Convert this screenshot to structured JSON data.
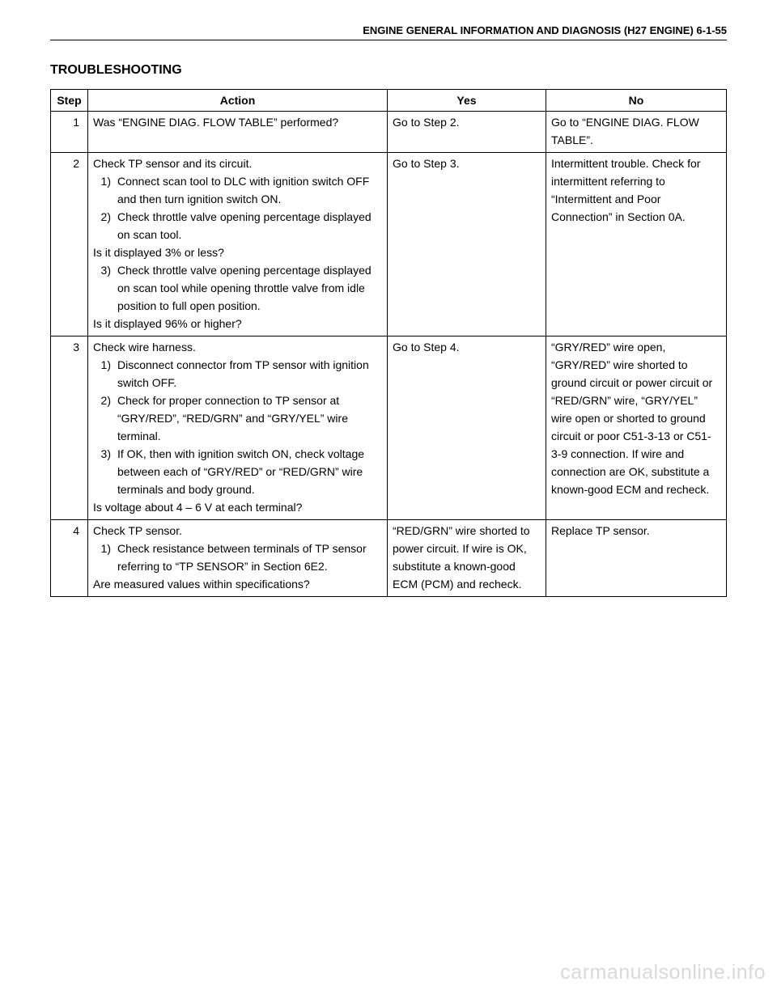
{
  "header": "ENGINE GENERAL INFORMATION AND DIAGNOSIS (H27 ENGINE) 6-1-55",
  "title": "TROUBLESHOOTING",
  "columns": {
    "step": "Step",
    "action": "Action",
    "yes": "Yes",
    "no": "No"
  },
  "rows": [
    {
      "step": "1",
      "action_intro": "Was “ENGINE DIAG. FLOW TABLE” performed?",
      "items": [],
      "action_outro": "",
      "yes": "Go to Step 2.",
      "no": "Go to “ENGINE DIAG. FLOW TABLE”."
    },
    {
      "step": "2",
      "action_intro": "Check TP sensor and its circuit.",
      "items": [
        {
          "n": "1)",
          "t": "Connect scan tool to DLC with ignition switch OFF and then turn ignition switch ON."
        },
        {
          "n": "2)",
          "t": "Check throttle valve opening percentage displayed on scan tool."
        }
      ],
      "mid": "Is it displayed 3% or less?",
      "items2": [
        {
          "n": "3)",
          "t": "Check throttle valve opening percentage displayed on scan tool while opening throttle valve from idle position to full open position."
        }
      ],
      "action_outro": "Is it displayed 96% or higher?",
      "yes": "Go to Step 3.",
      "no": "Intermittent trouble. Check for intermittent referring to “Intermittent and Poor Connection” in Section 0A."
    },
    {
      "step": "3",
      "action_intro": "Check wire harness.",
      "items": [
        {
          "n": "1)",
          "t": "Disconnect connector from TP sensor with ignition switch OFF."
        },
        {
          "n": "2)",
          "t": "Check for proper connection to TP sensor at “GRY/RED”, “RED/GRN” and “GRY/YEL” wire terminal."
        },
        {
          "n": "3)",
          "t": "If OK, then with ignition switch ON, check voltage between each of “GRY/RED” or “RED/GRN” wire terminals and body ground."
        }
      ],
      "action_outro": "Is voltage about 4 – 6 V at each terminal?",
      "yes": "Go to Step 4.",
      "no": "“GRY/RED” wire open, “GRY/RED” wire shorted to ground circuit or power circuit or “RED/GRN” wire, “GRY/YEL” wire open or shorted to ground circuit or poor C51-3-13 or C51-3-9 connection.\nIf wire and connection are OK, substitute a known-good ECM and recheck."
    },
    {
      "step": "4",
      "action_intro": "Check TP sensor.",
      "items": [
        {
          "n": "1)",
          "t": "Check resistance between terminals of TP sensor referring to “TP SENSOR” in Section 6E2."
        }
      ],
      "action_outro": "Are measured values within specifications?",
      "yes": "“RED/GRN” wire shorted to power circuit.\nIf wire is OK, substitute a known-good ECM (PCM) and recheck.",
      "no": "Replace TP sensor."
    }
  ],
  "watermark": "carmanualsonline.info"
}
